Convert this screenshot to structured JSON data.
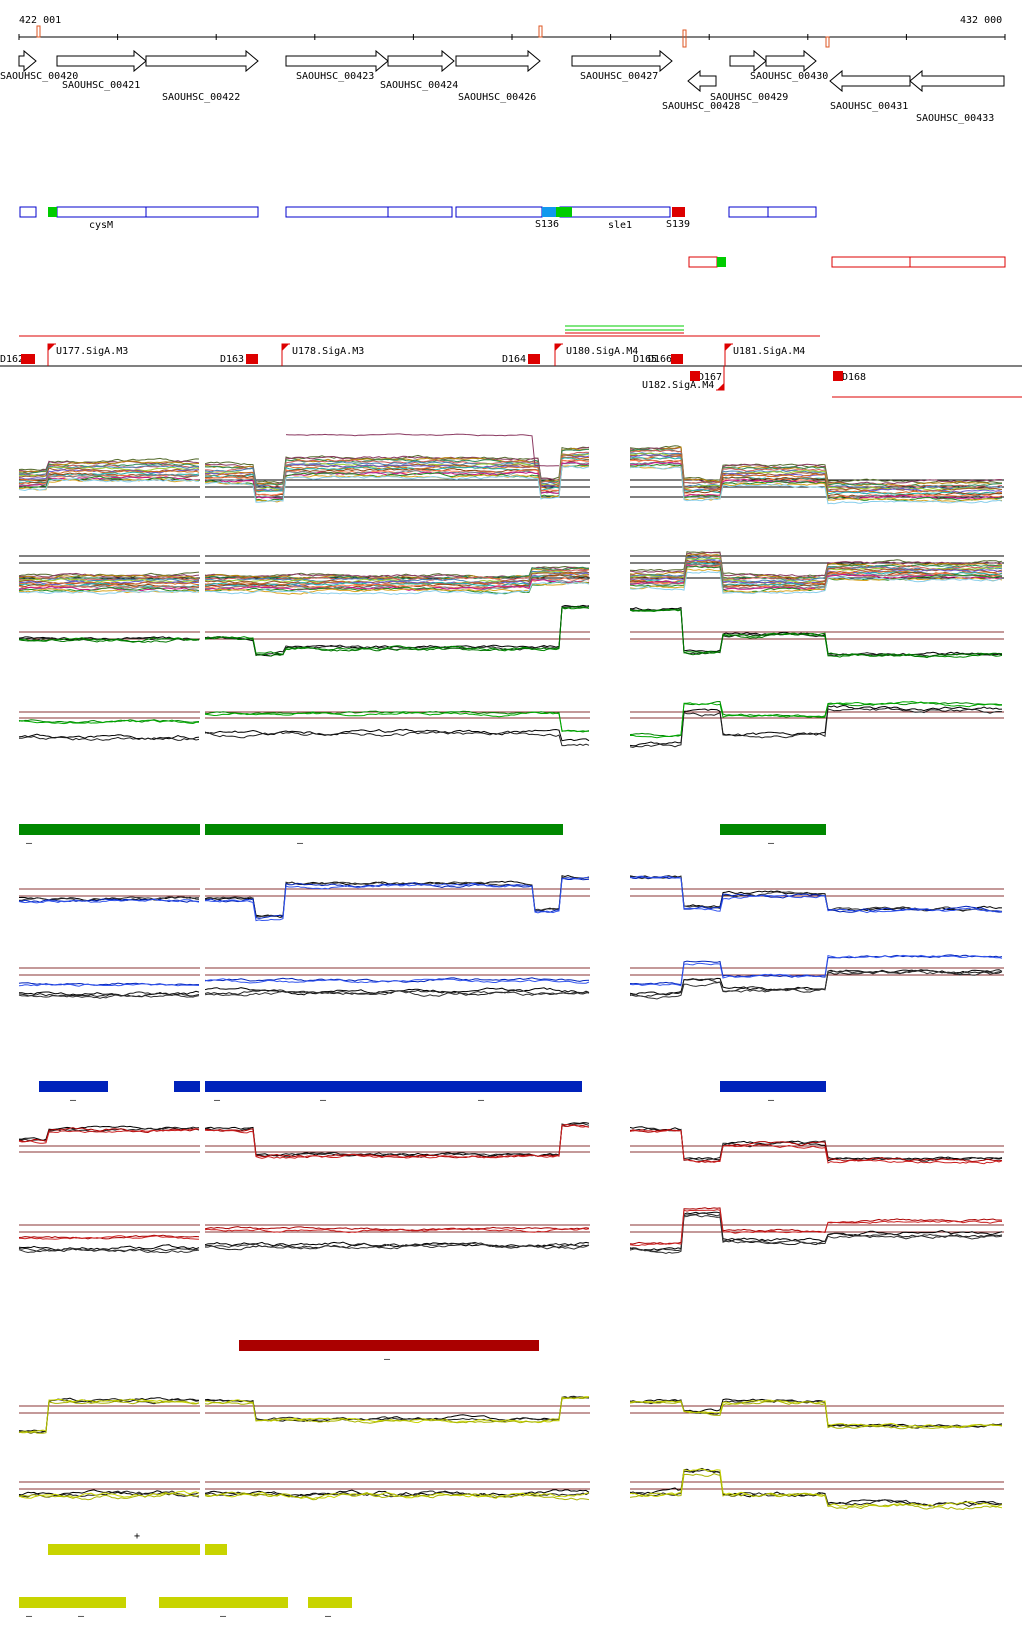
{
  "window": {
    "title": ""
  },
  "axis": {
    "start_label": "422 001",
    "end_label": "432 000"
  },
  "colors": {
    "gene_outline": "#000000",
    "annotation_blue": "#0000cc",
    "annotation_red": "#dd0000",
    "marker_green": "#00cc00",
    "marker_cyan": "#1199ee",
    "green_track": "#008800",
    "blue_track": "#0022bb",
    "red_track": "#aa0000",
    "yellow_track": "#c8d400",
    "threshold_line": "#883333"
  },
  "genes": [
    {
      "label": "SAOUHSC_00420",
      "strand": "+"
    },
    {
      "label": "SAOUHSC_00421",
      "strand": "+"
    },
    {
      "label": "SAOUHSC_00422",
      "strand": "+"
    },
    {
      "label": "SAOUHSC_00423",
      "strand": "+"
    },
    {
      "label": "SAOUHSC_00424",
      "strand": "+"
    },
    {
      "label": "SAOUHSC_00426",
      "strand": "+"
    },
    {
      "label": "SAOUHSC_00427",
      "strand": "+"
    },
    {
      "label": "SAOUHSC_00428",
      "strand": "-"
    },
    {
      "label": "SAOUHSC_00429",
      "strand": "+"
    },
    {
      "label": "SAOUHSC_00430",
      "strand": "+"
    },
    {
      "label": "SAOUHSC_00431",
      "strand": "-"
    },
    {
      "label": "SAOUHSC_00433",
      "strand": "-"
    }
  ],
  "annotations": {
    "blue_labels": [
      "cysM",
      "S136",
      "sle1",
      "S139"
    ]
  },
  "promoters": [
    {
      "label": "D162"
    },
    {
      "label": "U177.SigA.M3"
    },
    {
      "label": "D163"
    },
    {
      "label": "U178.SigA.M3"
    },
    {
      "label": "D164"
    },
    {
      "label": "U180.SigA.M4"
    },
    {
      "label": "D165"
    },
    {
      "label": "D166"
    },
    {
      "label": "U181.SigA.M4"
    },
    {
      "label": "D167"
    },
    {
      "label": "U182.SigA.M4"
    },
    {
      "label": "D168"
    }
  ],
  "segment_signs": {
    "green": [
      "–",
      "–",
      "–"
    ],
    "blue": [
      "–",
      "–",
      "–",
      "–",
      "–"
    ],
    "red": [
      "–"
    ],
    "yellow_top": [
      "+"
    ],
    "yellow_bottom": [
      "–",
      "–",
      "–",
      "–"
    ]
  }
}
